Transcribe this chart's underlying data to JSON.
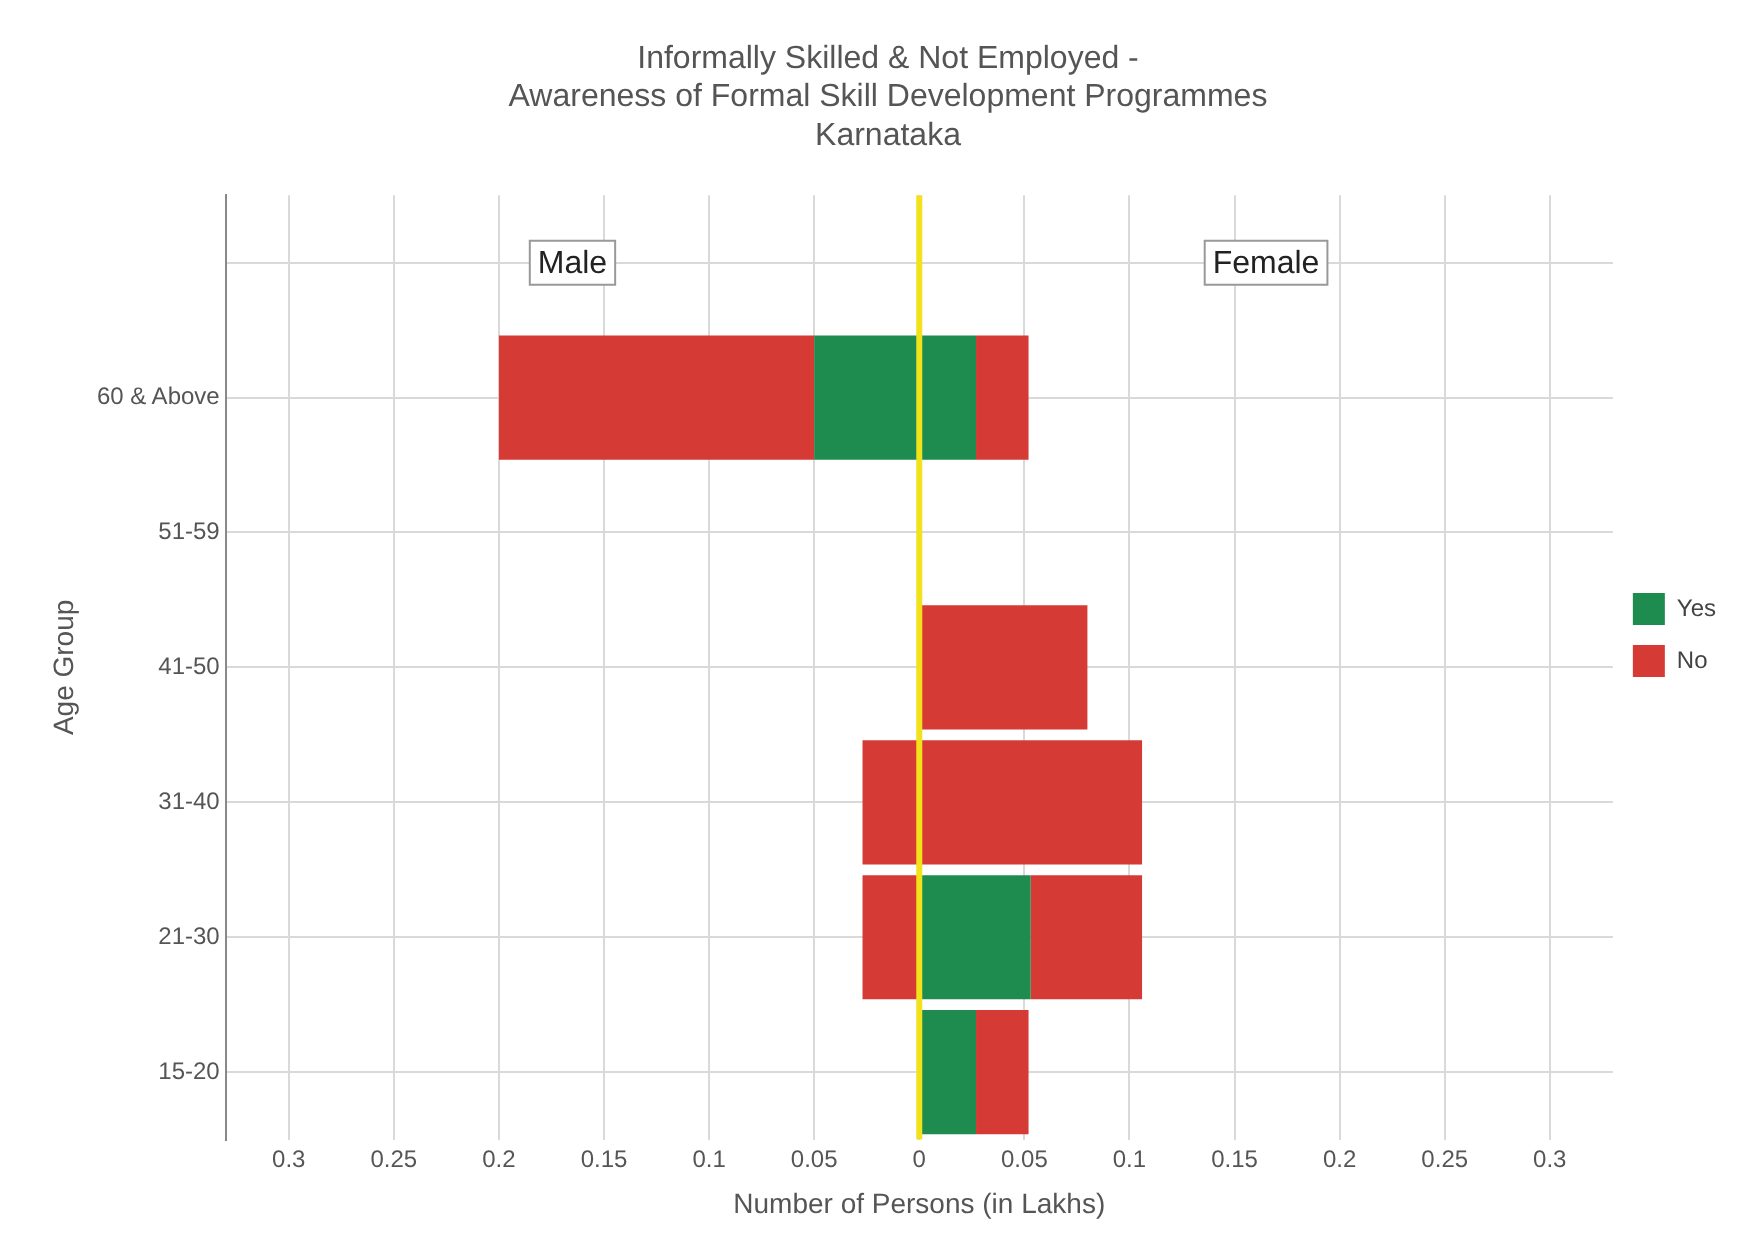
{
  "chart_data": {
    "type": "bar",
    "orientation": "horizontal",
    "stacked": true,
    "title": "Informally Skilled & Not Employed -\nAwareness of Formal Skill Development Programmes\nKarnataka",
    "xlabel": "Number of Persons (in Lakhs)",
    "ylabel": "Age Group",
    "categories": [
      null,
      "60 & Above",
      "51-59",
      "41-50",
      "31-40",
      "21-30",
      "15-20"
    ],
    "series": [
      {
        "name": "Yes",
        "color": "#1e8c4e",
        "values": [
          null,
          -0.05,
          null,
          null,
          null,
          null,
          null
        ]
      },
      {
        "name": "No",
        "color": "#d63a35",
        "values": [
          null,
          -0.15,
          null,
          null,
          -0.027,
          -0.027,
          null
        ]
      },
      {
        "color": "#1e8c4e",
        "values": [
          null,
          0.027,
          null,
          null,
          null,
          0.053,
          0.027
        ]
      },
      {
        "color": "#d63a35",
        "values": [
          null,
          0.025,
          null,
          0.08,
          0.106,
          0.053,
          0.025
        ]
      }
    ],
    "xlim": [
      -0.33,
      0.33
    ],
    "xticks": [
      {
        "value": -0.3,
        "label": "0.3"
      },
      {
        "value": -0.25,
        "label": "0.25"
      },
      {
        "value": -0.2,
        "label": "0.2"
      },
      {
        "value": -0.15,
        "label": "0.15"
      },
      {
        "value": -0.1,
        "label": "0.1"
      },
      {
        "value": -0.05,
        "label": "0.05"
      },
      0,
      0.05,
      0.1,
      0.15,
      0.2,
      0.25,
      0.3
    ],
    "ref_lines": [
      {
        "axis": "x",
        "value": 0,
        "color": "#f2e21c"
      }
    ],
    "annotations": [
      "Male",
      "Female"
    ],
    "grid": true,
    "legend": "right"
  }
}
